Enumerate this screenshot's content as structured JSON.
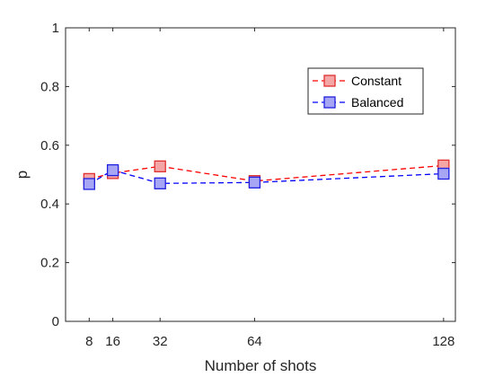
{
  "chart_data": {
    "type": "line",
    "title": "",
    "xlabel": "Number of shots",
    "ylabel": "p",
    "x": [
      8,
      16,
      32,
      64,
      128
    ],
    "xticks": [
      "8",
      "16",
      "32",
      "64",
      "128"
    ],
    "yticks": [
      "0",
      "0.2",
      "0.4",
      "0.6",
      "0.8",
      "1"
    ],
    "xlim": [
      0,
      132
    ],
    "ylim": [
      0,
      1
    ],
    "grid": false,
    "legend_position": "top-right",
    "series": [
      {
        "name": "Constant",
        "values": [
          0.485,
          0.505,
          0.528,
          0.478,
          0.531
        ],
        "line_color": "#ff0000",
        "marker_fill": "#f4a6a6",
        "marker_edge": "#e03030",
        "line_style": "dashed",
        "marker": "square"
      },
      {
        "name": "Balanced",
        "values": [
          0.468,
          0.515,
          0.47,
          0.473,
          0.503
        ],
        "line_color": "#0000ff",
        "marker_fill": "#a6a6f4",
        "marker_edge": "#2020e0",
        "line_style": "dashed",
        "marker": "square"
      }
    ]
  }
}
